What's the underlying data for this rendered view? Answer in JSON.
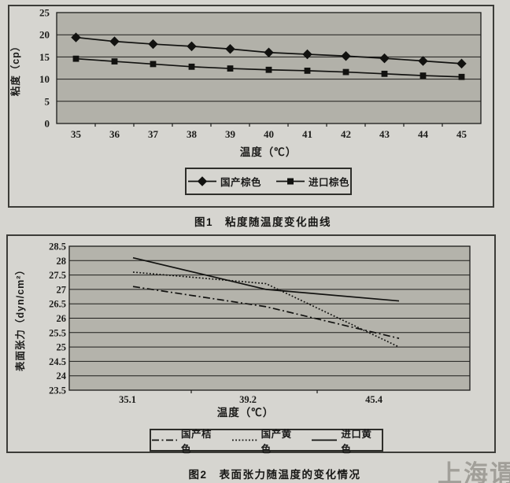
{
  "page": {
    "watermark": "上海谓载",
    "captions": {
      "fig1": "图1　粘度随温度变化曲线",
      "fig2": "图2　表面张力随温度的变化情况"
    }
  },
  "chart_data": [
    {
      "type": "line",
      "title": "",
      "xlabel": "温度（℃）",
      "ylabel": "粘度（cp）",
      "x": [
        35,
        36,
        37,
        38,
        39,
        40,
        41,
        42,
        43,
        44,
        45
      ],
      "ylim": [
        0,
        25
      ],
      "yticks": [
        0,
        5,
        10,
        15,
        20,
        25
      ],
      "grid": true,
      "legend_position": "bottom",
      "series": [
        {
          "name": "国产棕色",
          "marker": "diamond",
          "line_style": "solid",
          "values": [
            19.4,
            18.5,
            17.9,
            17.4,
            16.8,
            16.0,
            15.6,
            15.2,
            14.7,
            14.1,
            13.5
          ]
        },
        {
          "name": "进口棕色",
          "marker": "square",
          "line_style": "solid",
          "values": [
            14.6,
            14.0,
            13.4,
            12.8,
            12.4,
            12.1,
            11.9,
            11.6,
            11.2,
            10.8,
            10.5
          ]
        }
      ]
    },
    {
      "type": "line",
      "title": "",
      "xlabel": "温度（℃）",
      "ylabel": "表面张力（dyn/cm²）",
      "x": [
        35.1,
        39.2,
        45.4
      ],
      "ylim": [
        23.5,
        28.5
      ],
      "yticks": [
        23.5,
        24,
        24.5,
        25,
        25.5,
        26,
        26.5,
        27,
        27.5,
        28,
        28.5
      ],
      "grid": true,
      "legend_position": "bottom",
      "series": [
        {
          "name": "国产桔色",
          "marker": null,
          "line_style": "dashdot",
          "values": [
            27.1,
            26.4,
            25.3
          ]
        },
        {
          "name": "国产黄色",
          "marker": null,
          "line_style": "dotted",
          "values": [
            27.6,
            27.2,
            25.0
          ]
        },
        {
          "name": "进口黄色",
          "marker": null,
          "line_style": "solid",
          "values": [
            28.1,
            27.0,
            26.6
          ]
        }
      ]
    }
  ]
}
